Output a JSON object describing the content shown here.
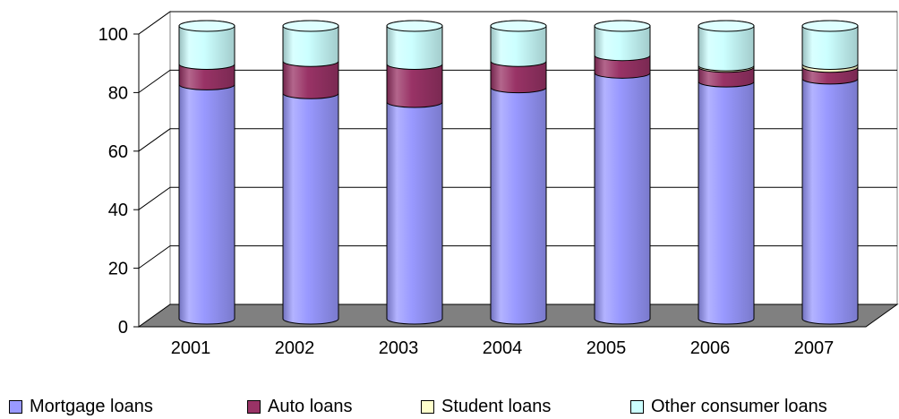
{
  "chart_data": {
    "type": "bar",
    "stacked": true,
    "style": "3d-cylinder",
    "categories": [
      "2001",
      "2002",
      "2003",
      "2004",
      "2005",
      "2006",
      "2007"
    ],
    "series": [
      {
        "name": "Mortgage loans",
        "color": "#9999ff",
        "values": [
          80,
          77,
          74,
          79,
          84,
          81,
          82
        ]
      },
      {
        "name": "Auto loans",
        "color": "#993366",
        "values": [
          7,
          11,
          13,
          9,
          6,
          5,
          4
        ]
      },
      {
        "name": "Student loans",
        "color": "#ffffcc",
        "values": [
          0,
          0,
          0,
          0,
          0,
          0.5,
          1
        ]
      },
      {
        "name": "Other consumer loans",
        "color": "#ccffff",
        "values": [
          13,
          12,
          13,
          12,
          10,
          13.5,
          13
        ]
      }
    ],
    "yticks": [
      0,
      20,
      40,
      60,
      80,
      100
    ],
    "ylim": [
      0,
      100
    ],
    "grid": true,
    "legend_position": "bottom",
    "floor_color": "#808080",
    "title": "",
    "xlabel": "",
    "ylabel": ""
  }
}
